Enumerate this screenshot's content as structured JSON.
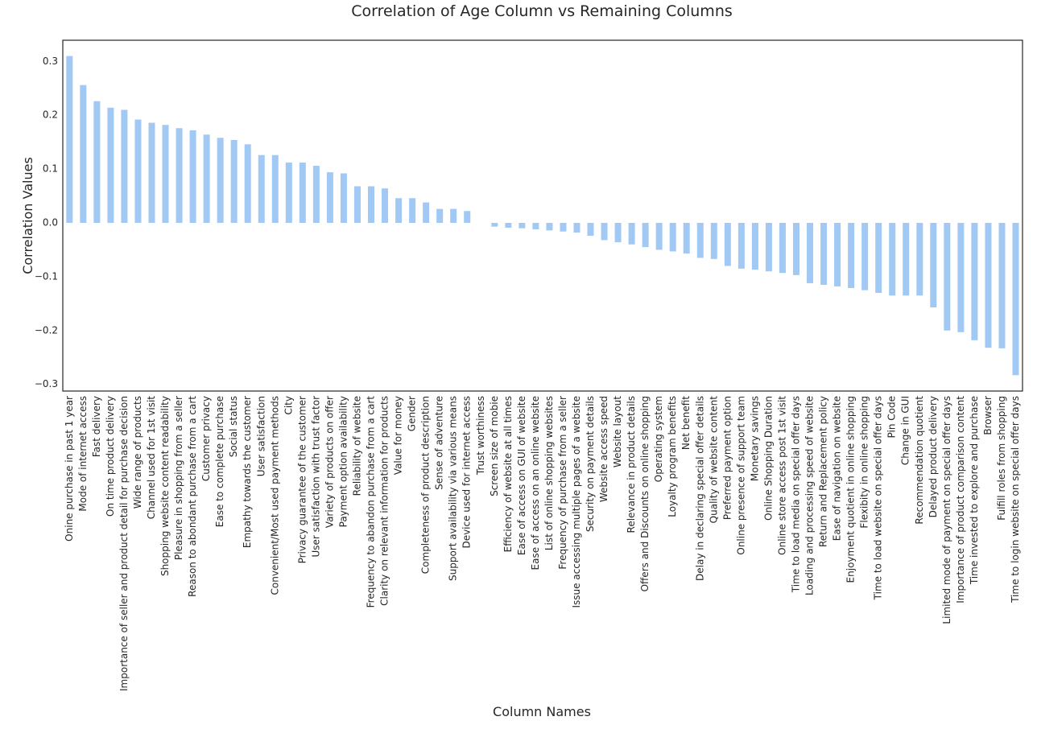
{
  "chart_data": {
    "type": "bar",
    "title": "Correlation of Age Column vs Remaining Columns",
    "xlabel": "Column Names",
    "ylabel": "Correlation Values",
    "ylim": [
      -0.31,
      0.34
    ],
    "yticks": [
      0.3,
      0.2,
      0.1,
      0.0,
      -0.1,
      -0.2,
      -0.3
    ],
    "ytick_labels": [
      "0.3",
      "0.2",
      "0.1",
      "0.0",
      "−0.1",
      "−0.2",
      "−0.3"
    ],
    "grid": false,
    "bar_color": "#a1c9f4",
    "categories": [
      "Onine purchase in past 1 year",
      "Mode of internet access",
      "Fast delivery",
      "On time product delivery",
      "Importance of seller and product detail for purchase decision",
      "Wide range of products",
      "Channel used for 1st visit",
      "Shopping website content readability",
      "Pleasure in shopping from a seller",
      "Reason to abondant purchase from a cart",
      "Customer privacy",
      "Ease to complete purchase",
      "Social status",
      "Empathy towards the customer",
      "User satisfaction",
      "Convenient/Most used payment methods",
      "City",
      "Privacy guarantee of the customer",
      "User satisfaction with trust factor",
      "Variety of products on offer",
      "Payment option availability",
      "Reliability of website",
      "Frequency to abandon purchase from a cart",
      "Clarity on relevant information for products",
      "Value for money",
      "Gender",
      "Completeness of product description",
      "Sense of adventure",
      "Support availability via various means",
      "Device used for internet access",
      "Trust worthiness",
      "Screen size of mobie",
      "Efficiency of website at all times",
      "Ease of access on GUI of website",
      "Ease of access on an online website",
      "List of online shopping websites",
      "Frequency of purchase from a seller",
      "Issue accessing multiple pages of a website",
      "Security on payment details",
      "Website access speed",
      "Website layout",
      "Relevance in product details",
      "Offers and Discounts on online shopping",
      "Operating system",
      "Loyalty program benefits",
      "Net benefit",
      "Delay in declaring special offer details",
      "Quality of website content",
      "Preferred payment option",
      "Online presence of support team",
      "Monetary savings",
      "Online Shopping Duration",
      "Online store access post 1st visit",
      "Time to load media on special offer days",
      "Loading and processing speed of website",
      "Return and Replacement policy",
      "Ease of navigation on website",
      "Enjoyment quotient in online shopping",
      "Flexibity in online shopping",
      "Time to load website on special offer days",
      "Pin Code",
      "Change in GUI",
      "Recommendation quotient",
      "Delayed product delivery",
      "Limited mode of payment on special offer days",
      "Importance of product comparison content",
      "Time invested to explore and purchase",
      "Browser",
      "Fulfill roles from shopping",
      "Time to login website on special offer days"
    ],
    "values": [
      0.31,
      0.256,
      0.226,
      0.214,
      0.21,
      0.192,
      0.186,
      0.182,
      0.176,
      0.172,
      0.164,
      0.158,
      0.154,
      0.146,
      0.126,
      0.126,
      0.112,
      0.112,
      0.106,
      0.094,
      0.092,
      0.068,
      0.068,
      0.064,
      0.046,
      0.046,
      0.038,
      0.026,
      0.026,
      0.022,
      0.0,
      -0.007,
      -0.009,
      -0.01,
      -0.012,
      -0.014,
      -0.016,
      -0.018,
      -0.024,
      -0.032,
      -0.036,
      -0.04,
      -0.045,
      -0.05,
      -0.053,
      -0.057,
      -0.065,
      -0.067,
      -0.08,
      -0.085,
      -0.087,
      -0.09,
      -0.093,
      -0.097,
      -0.112,
      -0.115,
      -0.118,
      -0.121,
      -0.125,
      -0.13,
      -0.135,
      -0.135,
      -0.135,
      -0.157,
      -0.2,
      -0.203,
      -0.218,
      -0.232,
      -0.233,
      -0.283
    ]
  }
}
